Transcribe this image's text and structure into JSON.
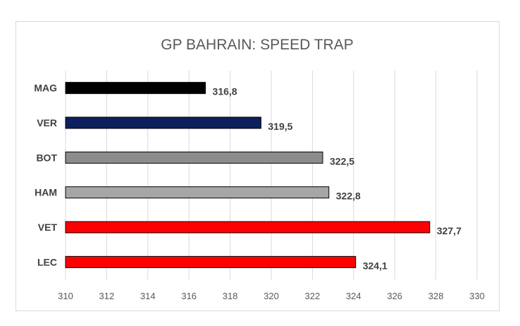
{
  "chart_data": {
    "type": "bar",
    "orientation": "horizontal",
    "title": "GP BAHRAIN: SPEED TRAP",
    "categories": [
      "MAG",
      "VER",
      "BOT",
      "HAM",
      "VET",
      "LEC"
    ],
    "values": [
      316.8,
      319.5,
      322.5,
      322.8,
      327.7,
      324.1
    ],
    "value_labels": [
      "316,8",
      "319,5",
      "322,5",
      "322,8",
      "327,7",
      "324,1"
    ],
    "colors": [
      "#000000",
      "#0d1f5c",
      "#8c8c8c",
      "#a6a6a6",
      "#ff0000",
      "#ff0000"
    ],
    "xlim": [
      310,
      330
    ],
    "xticks": [
      310,
      312,
      314,
      316,
      318,
      320,
      322,
      324,
      326,
      328,
      330
    ],
    "xtick_labels": [
      "310",
      "312",
      "314",
      "316",
      "318",
      "320",
      "322",
      "324",
      "326",
      "328",
      "330"
    ],
    "grid": true,
    "legend": "none",
    "xlabel": "",
    "ylabel": ""
  }
}
